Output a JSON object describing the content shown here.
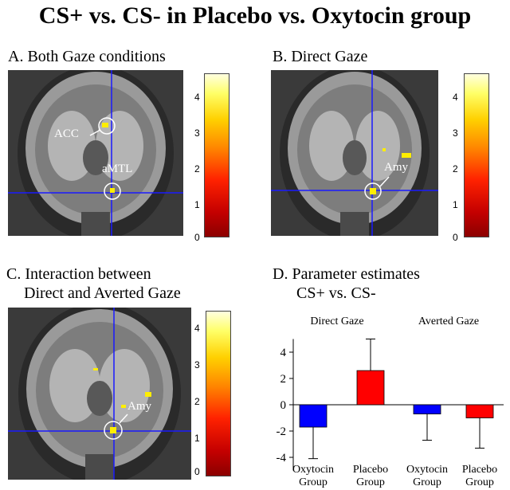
{
  "title": "CS+ vs. CS- in Placebo vs. Oxytocin group",
  "panels": {
    "a": {
      "label": "A. Both Gaze conditions",
      "regions": [
        "ACC",
        "aMTL"
      ]
    },
    "b": {
      "label": "B. Direct Gaze",
      "regions": [
        "Amy"
      ]
    },
    "c": {
      "label_line1": "C. Interaction between",
      "label_line2": "Direct and Averted Gaze",
      "regions": [
        "Amy"
      ]
    },
    "d": {
      "label_line1": "D. Parameter estimates",
      "label_line2": "CS+ vs. CS-"
    }
  },
  "colorbar": {
    "ticks": [
      "0",
      "1",
      "2",
      "3",
      "4"
    ],
    "range": [
      0,
      4.6
    ]
  },
  "colors": {
    "oxytocin": "#0000ff",
    "placebo": "#ff0000",
    "crosshair": "#1a1aff",
    "activation": "#ffee00"
  },
  "chart_data": {
    "type": "bar",
    "ylim": [
      -5,
      5
    ],
    "yticks": [
      "4",
      "2",
      "0",
      "-2",
      "-4"
    ],
    "ytick_values": [
      4,
      2,
      0,
      -2,
      -4
    ],
    "groups": [
      "Direct Gaze",
      "Averted Gaze"
    ],
    "categories": [
      {
        "line1": "Oxytocin",
        "line2": "Group"
      },
      {
        "line1": "Placebo",
        "line2": "Group"
      },
      {
        "line1": "Oxytocin",
        "line2": "Group"
      },
      {
        "line1": "Placebo",
        "line2": "Group"
      }
    ],
    "values": [
      -1.7,
      2.6,
      -0.7,
      -1.0
    ],
    "errors": [
      2.4,
      2.4,
      2.0,
      2.3
    ],
    "bar_colors": [
      "oxytocin",
      "placebo",
      "oxytocin",
      "placebo"
    ]
  }
}
